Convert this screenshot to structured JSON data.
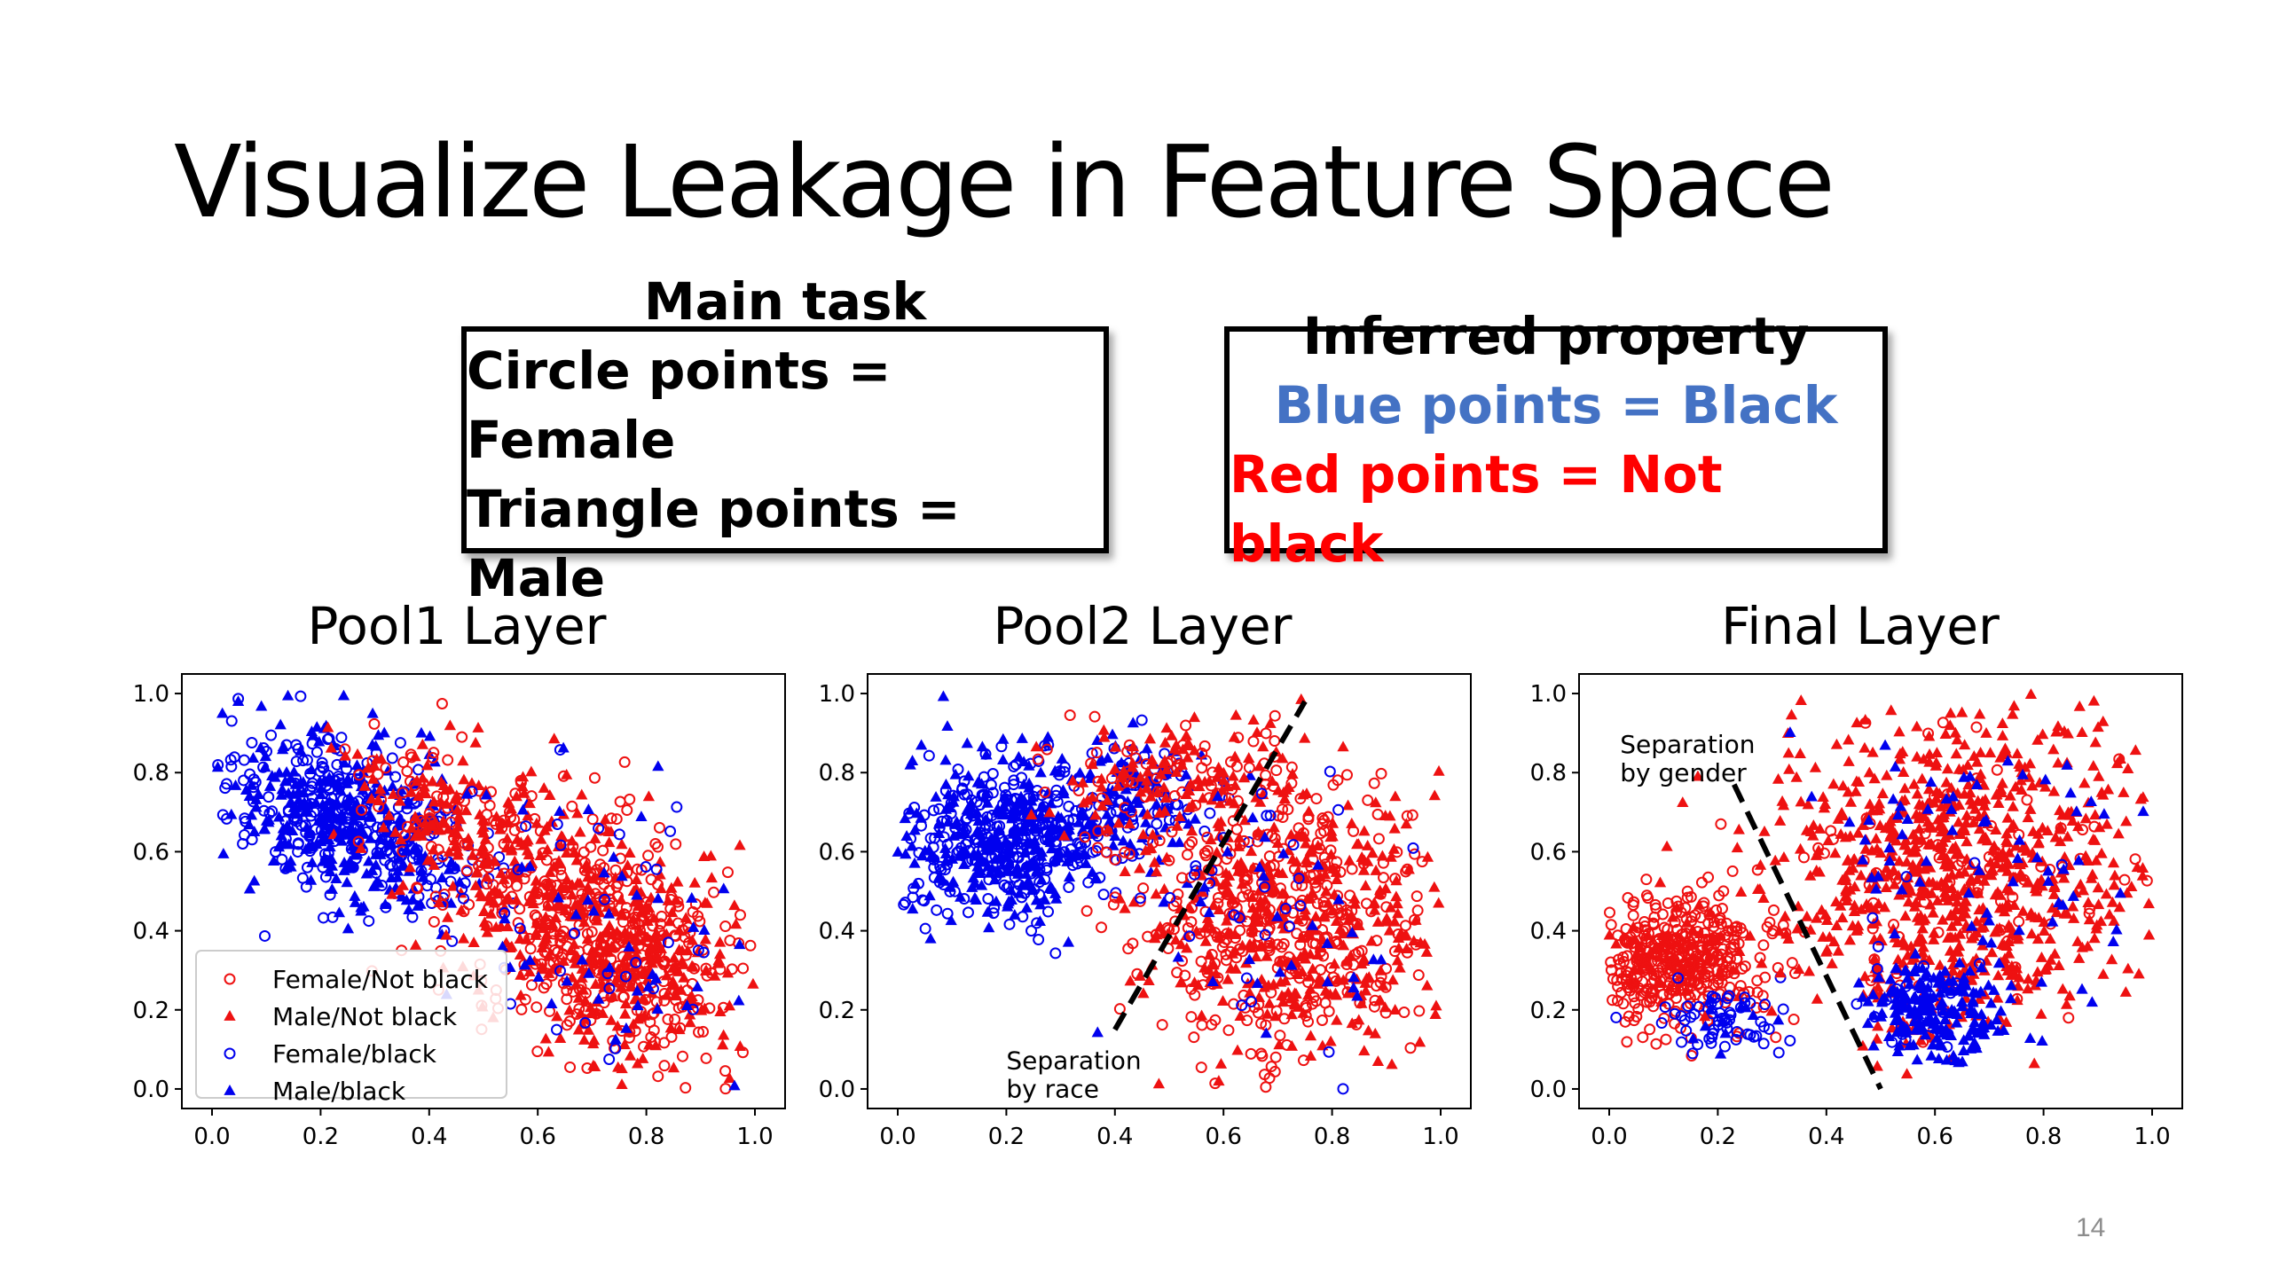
{
  "slide": {
    "title": "Visualize Leakage in Feature Space",
    "page_number": "14"
  },
  "box_main": {
    "line1": "Main task",
    "line2": "Circle points = Female",
    "line3": "Triangle points = Male"
  },
  "box_property": {
    "line1": "Inferred property",
    "line2": "Blue points = Black",
    "line3": "Red points = Not black"
  },
  "colors": {
    "black_points": "#0000ee",
    "not_black_points": "#ee1111",
    "blue_text": "#4472c4",
    "red_text": "#ff0000"
  },
  "chart_data": [
    {
      "type": "scatter",
      "title": "Pool1 Layer",
      "xlim": [
        0,
        1
      ],
      "ylim": [
        0,
        1
      ],
      "xticks": [
        "0.0",
        "0.2",
        "0.4",
        "0.6",
        "0.8",
        "1.0"
      ],
      "yticks": [
        "0.0",
        "0.2",
        "0.4",
        "0.6",
        "0.8",
        "1.0"
      ],
      "grid": false,
      "legend": {
        "placement": "lower-left",
        "entries": [
          {
            "label": "Female/Not black",
            "marker": "circle-open",
            "color": "#ee1111"
          },
          {
            "label": "Male/Not black",
            "marker": "triangle",
            "color": "#ee1111"
          },
          {
            "label": "Female/black",
            "marker": "circle-open",
            "color": "#0000ee"
          },
          {
            "label": "Male/black",
            "marker": "triangle",
            "color": "#0000ee"
          }
        ]
      },
      "clusters": [
        {
          "series": "black",
          "center": [
            0.25,
            0.68
          ],
          "spread": [
            0.11,
            0.1
          ],
          "count": 560
        },
        {
          "series": "not_black",
          "center": [
            0.72,
            0.38
          ],
          "spread": [
            0.14,
            0.15
          ],
          "count": 780
        },
        {
          "series": "not_black",
          "center": [
            0.45,
            0.7
          ],
          "spread": [
            0.1,
            0.1
          ],
          "count": 200
        },
        {
          "series": "black",
          "center": [
            0.7,
            0.4
          ],
          "spread": [
            0.16,
            0.18
          ],
          "count": 90
        }
      ]
    },
    {
      "type": "scatter",
      "title": "Pool2 Layer",
      "xlim": [
        0,
        1
      ],
      "ylim": [
        0,
        1
      ],
      "xticks": [
        "0.0",
        "0.2",
        "0.4",
        "0.6",
        "0.8",
        "1.0"
      ],
      "yticks": [
        "0.0",
        "0.2",
        "0.4",
        "0.6",
        "0.8",
        "1.0"
      ],
      "grid": false,
      "annotation": {
        "line1": "Separation",
        "line2": "by race",
        "at": [
          0.2,
          0.05
        ]
      },
      "separator": {
        "from": [
          0.4,
          0.15
        ],
        "to": [
          0.75,
          0.98
        ]
      },
      "clusters": [
        {
          "series": "black",
          "center": [
            0.2,
            0.63
          ],
          "spread": [
            0.1,
            0.1
          ],
          "count": 540
        },
        {
          "series": "black",
          "center": [
            0.42,
            0.72
          ],
          "spread": [
            0.08,
            0.08
          ],
          "count": 160
        },
        {
          "series": "not_black",
          "center": [
            0.72,
            0.42
          ],
          "spread": [
            0.14,
            0.18
          ],
          "count": 760
        },
        {
          "series": "not_black",
          "center": [
            0.5,
            0.78
          ],
          "spread": [
            0.1,
            0.08
          ],
          "count": 160
        },
        {
          "series": "black",
          "center": [
            0.68,
            0.45
          ],
          "spread": [
            0.14,
            0.18
          ],
          "count": 60
        }
      ]
    },
    {
      "type": "scatter",
      "title": "Final Layer",
      "xlim": [
        0,
        1
      ],
      "ylim": [
        0,
        1
      ],
      "xticks": [
        "0.0",
        "0.2",
        "0.4",
        "0.6",
        "0.8",
        "1.0"
      ],
      "yticks": [
        "0.0",
        "0.2",
        "0.4",
        "0.6",
        "0.8",
        "1.0"
      ],
      "grid": false,
      "annotation": {
        "line1": "Separation",
        "line2": "by gender",
        "at": [
          0.02,
          0.85
        ]
      },
      "separator": {
        "from": [
          0.23,
          0.77
        ],
        "to": [
          0.5,
          0.0
        ]
      },
      "clusters": [
        {
          "series": "not_black_female",
          "center": [
            0.12,
            0.33
          ],
          "spread": [
            0.08,
            0.08
          ],
          "count": 480
        },
        {
          "series": "black_female",
          "center": [
            0.2,
            0.18
          ],
          "spread": [
            0.06,
            0.05
          ],
          "count": 70
        },
        {
          "series": "not_black_male",
          "center": [
            0.65,
            0.55
          ],
          "spread": [
            0.17,
            0.2
          ],
          "count": 900
        },
        {
          "series": "black_male",
          "center": [
            0.6,
            0.2
          ],
          "spread": [
            0.07,
            0.06
          ],
          "count": 200
        },
        {
          "series": "black_male",
          "center": [
            0.65,
            0.55
          ],
          "spread": [
            0.18,
            0.2
          ],
          "count": 90
        }
      ]
    }
  ]
}
